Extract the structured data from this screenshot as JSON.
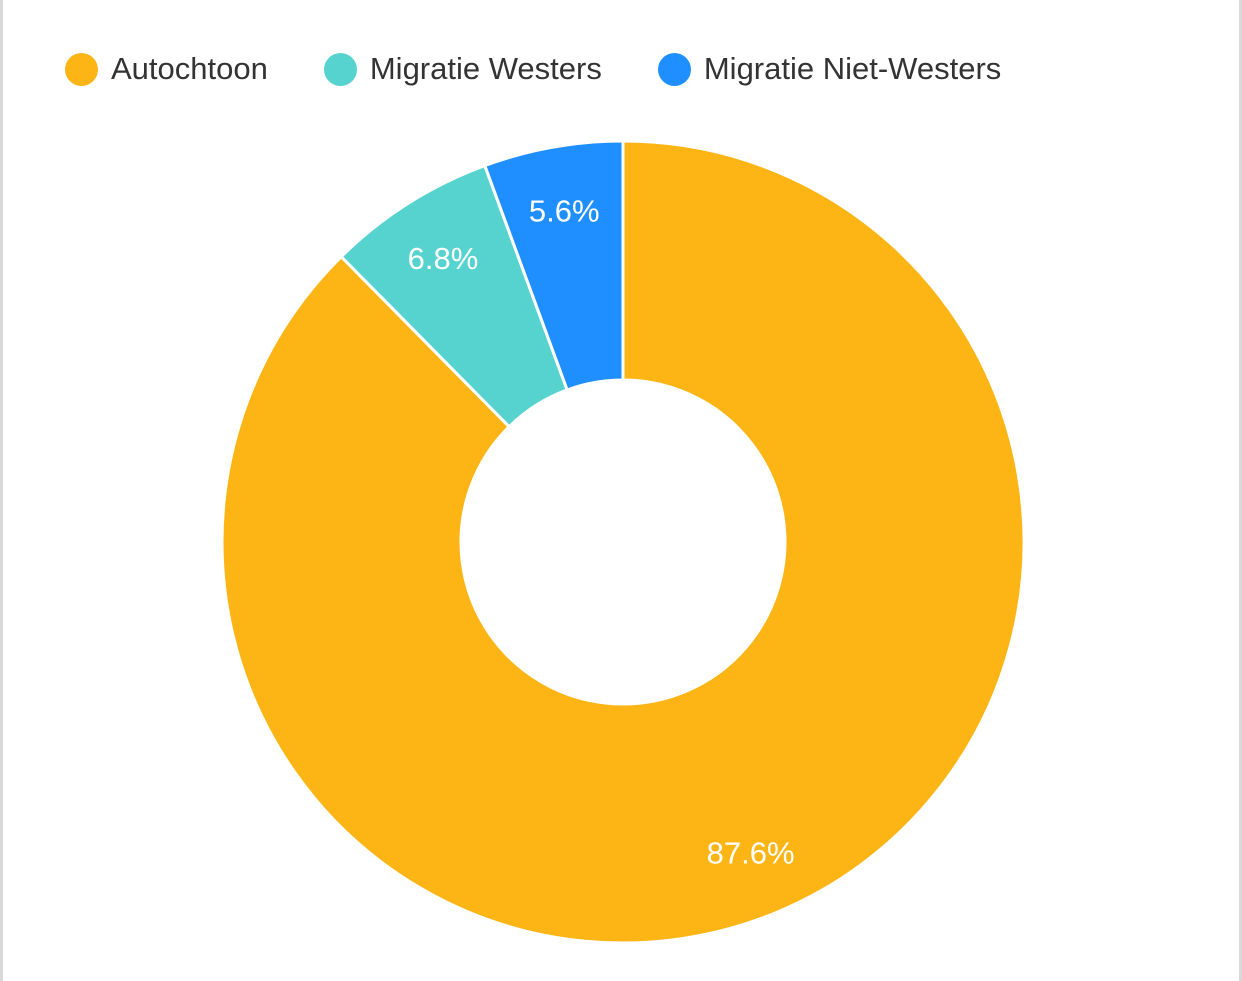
{
  "chart_data": {
    "type": "pie",
    "variant": "donut",
    "categories": [
      "Autochtoon",
      "Migratie Westers",
      "Migratie Niet-Westers"
    ],
    "values": [
      87.6,
      6.8,
      5.6
    ],
    "value_labels": [
      "87.6%",
      "6.8%",
      "5.6%"
    ],
    "colors": [
      "#FDB515",
      "#56D3CF",
      "#1F8FFF"
    ],
    "start_angle_deg": 0,
    "direction": "clockwise",
    "legend_position": "top-left"
  }
}
